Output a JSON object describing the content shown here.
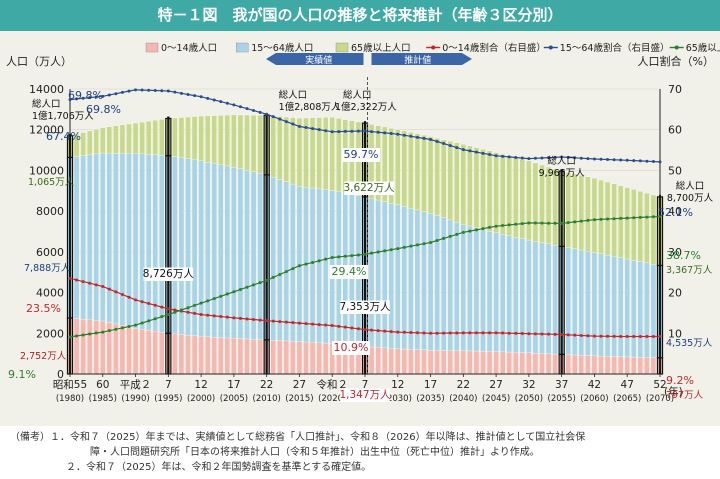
{
  "title": "特－１図　我が国の人口の推移と将来推計（年齢３区分別）",
  "chart_data": {
    "type": "bar",
    "stacked": true,
    "left_axis": {
      "label": "人口（万人）",
      "min": 0,
      "max": 14000,
      "ticks": [
        0,
        2000,
        4000,
        6000,
        8000,
        10000,
        12000,
        14000
      ]
    },
    "right_axis": {
      "label": "人口割合（%）",
      "min": 0,
      "max": 70,
      "ticks": [
        10,
        20,
        30,
        40,
        50,
        60,
        70
      ]
    },
    "x_unit": "(年)",
    "x_start": 1980,
    "x_end": 2070,
    "x_ticks": [
      {
        "year": 1980,
        "label": "昭和55",
        "sub": "(1980)"
      },
      {
        "year": 1985,
        "label": "60",
        "sub": "(1985)"
      },
      {
        "year": 1990,
        "label": "平成２",
        "sub": "(1990)"
      },
      {
        "year": 1995,
        "label": "7",
        "sub": "(1995)"
      },
      {
        "year": 2000,
        "label": "12",
        "sub": "(2000)"
      },
      {
        "year": 2005,
        "label": "17",
        "sub": "(2005)"
      },
      {
        "year": 2010,
        "label": "22",
        "sub": "(2010)"
      },
      {
        "year": 2015,
        "label": "27",
        "sub": "(2015)"
      },
      {
        "year": 2020,
        "label": "令和２",
        "sub": "(2020)"
      },
      {
        "year": 2025,
        "label": "7",
        "sub": "(2025)"
      },
      {
        "year": 2030,
        "label": "12",
        "sub": "(2030)"
      },
      {
        "year": 2035,
        "label": "17",
        "sub": "(2035)"
      },
      {
        "year": 2040,
        "label": "22",
        "sub": "(2040)"
      },
      {
        "year": 2045,
        "label": "27",
        "sub": "(2045)"
      },
      {
        "year": 2050,
        "label": "32",
        "sub": "(2050)"
      },
      {
        "year": 2055,
        "label": "37",
        "sub": "(2055)"
      },
      {
        "year": 2060,
        "label": "42",
        "sub": "(2060)"
      },
      {
        "year": 2065,
        "label": "47",
        "sub": "(2065)"
      },
      {
        "year": 2070,
        "label": "52",
        "sub": "(2070)"
      }
    ],
    "legend": [
      {
        "name": "0～14歳人口",
        "color": "#f4b8b0",
        "kind": "bar"
      },
      {
        "name": "15～64歳人口",
        "color": "#a8d4e6",
        "kind": "bar"
      },
      {
        "name": "65歳以上人口",
        "color": "#c8d98e",
        "kind": "bar"
      },
      {
        "name": "0～14歳割合（右目盛）",
        "color": "#c0282d",
        "kind": "line"
      },
      {
        "name": "15～64歳割合（右目盛）",
        "color": "#2a4d8f",
        "kind": "line"
      },
      {
        "name": "65歳以上割合（右目盛）",
        "color": "#2e7d32",
        "kind": "line"
      }
    ],
    "period_labels": {
      "actual": "実績値",
      "projection": "推計値"
    },
    "anchors": [
      {
        "year": 1980,
        "young": 2752,
        "working": 7888,
        "elderly": 1065,
        "pct_young": 23.5,
        "pct_working": 67.4,
        "pct_elderly": 9.1
      },
      {
        "year": 1985,
        "young": 2604,
        "working": 8251,
        "elderly": 1247,
        "pct_young": 21.5,
        "pct_working": 68.2,
        "pct_elderly": 10.3
      },
      {
        "year": 1990,
        "young": 2249,
        "working": 8590,
        "elderly": 1489,
        "pct_young": 18.2,
        "pct_working": 69.8,
        "pct_elderly": 12.0
      },
      {
        "year": 1995,
        "young": 2001,
        "working": 8726,
        "elderly": 1826,
        "pct_young": 16.0,
        "pct_working": 69.5,
        "pct_elderly": 14.6
      },
      {
        "year": 2000,
        "young": 1847,
        "working": 8622,
        "elderly": 2201,
        "pct_young": 14.6,
        "pct_working": 68.1,
        "pct_elderly": 17.4
      },
      {
        "year": 2005,
        "young": 1752,
        "working": 8409,
        "elderly": 2567,
        "pct_young": 13.8,
        "pct_working": 66.1,
        "pct_elderly": 20.2
      },
      {
        "year": 2010,
        "young": 1680,
        "working": 8103,
        "elderly": 2925,
        "pct_young": 13.1,
        "pct_working": 63.8,
        "pct_elderly": 23.0
      },
      {
        "year": 2015,
        "young": 1589,
        "working": 7629,
        "elderly": 3347,
        "pct_young": 12.5,
        "pct_working": 60.8,
        "pct_elderly": 26.6
      },
      {
        "year": 2020,
        "young": 1503,
        "working": 7509,
        "elderly": 3603,
        "pct_young": 11.9,
        "pct_working": 59.5,
        "pct_elderly": 28.6
      },
      {
        "year": 2025,
        "young": 1347,
        "working": 7353,
        "elderly": 3622,
        "pct_young": 10.9,
        "pct_working": 59.7,
        "pct_elderly": 29.4
      },
      {
        "year": 2030,
        "young": 1240,
        "working": 7076,
        "elderly": 3696,
        "pct_young": 10.3,
        "pct_working": 58.9,
        "pct_elderly": 30.8
      },
      {
        "year": 2035,
        "young": 1169,
        "working": 6722,
        "elderly": 3773,
        "pct_young": 10.0,
        "pct_working": 57.6,
        "pct_elderly": 32.3
      },
      {
        "year": 2040,
        "young": 1142,
        "working": 6213,
        "elderly": 3928,
        "pct_young": 10.1,
        "pct_working": 55.1,
        "pct_elderly": 34.8
      },
      {
        "year": 2045,
        "young": 1103,
        "working": 5832,
        "elderly": 3945,
        "pct_young": 10.1,
        "pct_working": 53.6,
        "pct_elderly": 36.3
      },
      {
        "year": 2050,
        "young": 1041,
        "working": 5540,
        "elderly": 3888,
        "pct_young": 9.9,
        "pct_working": 52.9,
        "pct_elderly": 37.1
      },
      {
        "year": 2055,
        "young": 966,
        "working": 5307,
        "elderly": 3692,
        "pct_young": 9.7,
        "pct_working": 53.3,
        "pct_elderly": 37.0
      },
      {
        "year": 2060,
        "young": 893,
        "working": 5078,
        "elderly": 3644,
        "pct_young": 9.3,
        "pct_working": 52.8,
        "pct_elderly": 37.9
      },
      {
        "year": 2065,
        "young": 840,
        "working": 4809,
        "elderly": 3509,
        "pct_young": 9.2,
        "pct_working": 52.5,
        "pct_elderly": 38.3
      },
      {
        "year": 2070,
        "young": 797,
        "working": 4535,
        "elderly": 3367,
        "pct_young": 9.2,
        "pct_working": 52.1,
        "pct_elderly": 38.7
      }
    ],
    "annotations": {
      "total_1980": [
        "総人口",
        "1億1,706万人"
      ],
      "total_2010": [
        "総人口",
        "1億2,808万人"
      ],
      "total_2025": [
        "総人口",
        "1億2,322万人"
      ],
      "total_2055": [
        "総人口",
        "9,965万人"
      ],
      "total_2070": [
        "総人口",
        "8,700万人"
      ],
      "elderly_1980": "1,065万人",
      "working_1980": "7,888万人",
      "young_1980": "2,752万人",
      "working_1995": "8,726万人",
      "elderly_2025": "3,622万人",
      "working_2025": "7,353万人",
      "young_2025": "1,347万人",
      "elderly_2070": "3,367万人",
      "working_2070": "4,535万人",
      "young_2070": "797万人",
      "pct_working_1980": "67.4%",
      "pct_working_peak_a": "69.8%",
      "pct_working_peak_b": "69.8%",
      "pct_working_2025": "59.7%",
      "pct_working_2070": "52.1%",
      "pct_elderly_1980": "9.1%",
      "pct_elderly_2025": "29.4%",
      "pct_elderly_2070": "38.7%",
      "pct_young_1980": "23.5%",
      "pct_young_2025": "10.9%",
      "pct_young_2070": "9.2%"
    }
  },
  "notes": {
    "prefix": "（備考）",
    "n1_num": "１．",
    "n1_a": "令和７（2025）年までは、実績値として総務省「人口推計」、令和８（2026）年以降は、推計値として国立社会保",
    "n1_b": "障・人口問題研究所「日本の将来推計人口（令和５年推計）出生中位（死亡中位）推計」より作成。",
    "n2_num": "２．",
    "n2": "令和７（2025）年は、令和２年国勢調査を基準とする確定値。"
  }
}
